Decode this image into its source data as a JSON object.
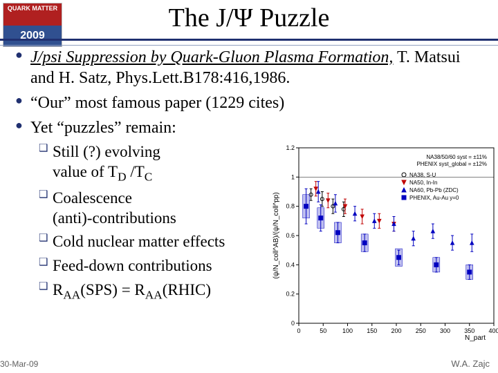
{
  "logo": {
    "top": "QUARK\nMATTER",
    "year": "2009"
  },
  "title": "The J/Ψ Puzzle",
  "bullets": [
    {
      "html": "<span class='ital-u'>J/psi Suppression by Quark-Gluon Plasma Formation,</span> T. Matsui and H. Satz,  Phys.Lett.B178:416,1986."
    },
    {
      "html": "“Our” most famous paper (1229 cites)"
    },
    {
      "html": "Yet “puzzles” remain:"
    }
  ],
  "subs": [
    {
      "html": "Still (?) evolving<br>value of T<span class='sc'>D</span> /T<span class='sc'>C</span>"
    },
    {
      "html": "Coalescence<br>(anti)-contributions"
    },
    {
      "html": "Cold nuclear matter effects"
    },
    {
      "html": "Feed-down contributions"
    },
    {
      "html": "R<span class='sc'>AA</span>(SPS) = R<span class='sc'>AA</span>(RHIC)"
    }
  ],
  "footer": {
    "left": "30-Mar-09",
    "right": "W.A. Zajc"
  },
  "chart": {
    "type": "scatter-errorbar",
    "bg": "#ffffff",
    "axis_color": "#000000",
    "grid": "off",
    "xlim": [
      0,
      400
    ],
    "xticks": [
      0,
      50,
      100,
      150,
      200,
      250,
      300,
      350,
      400
    ],
    "ylim": [
      0,
      1.2
    ],
    "yticks": [
      0,
      0.2,
      0.4,
      0.6,
      0.8,
      1.0,
      1.2
    ],
    "ylabel": "(ψ/N_coll^AB)/(ψ/N_coll^pp)",
    "xlabel": "N_part",
    "ylabel_fontsize": 10,
    "xlabel_fontsize": 10,
    "tick_fontsize": 9,
    "legend": {
      "pos": "top-right",
      "fontsize": 8,
      "items": [
        {
          "label": "NA38, S-U",
          "marker": "circle",
          "color": "#000000"
        },
        {
          "label": "NA50, In-In",
          "marker": "triangle-down",
          "color": "#c00000"
        },
        {
          "label": "NA60, Pb-Pb (ZDC)",
          "marker": "triangle-up",
          "color": "#0000c0"
        },
        {
          "label": "PHENIX, Au-Au y=0",
          "marker": "square",
          "color": "#0000c0"
        }
      ],
      "syst": [
        "NA38/50/60 syst = ±11%",
        "PHENIX syst_global = ±12%"
      ]
    },
    "series": [
      {
        "marker": "circle",
        "color": "#000000",
        "fill": "none",
        "size": 5,
        "points": [
          {
            "x": 25,
            "y": 0.88,
            "ey": 0.04
          },
          {
            "x": 48,
            "y": 0.85,
            "ey": 0.05
          },
          {
            "x": 70,
            "y": 0.8,
            "ey": 0.05
          },
          {
            "x": 92,
            "y": 0.78,
            "ey": 0.05
          }
        ]
      },
      {
        "marker": "triangle-down",
        "color": "#c00000",
        "fill": "#c00000",
        "size": 5,
        "points": [
          {
            "x": 35,
            "y": 0.92,
            "ey": 0.05
          },
          {
            "x": 60,
            "y": 0.84,
            "ey": 0.05
          },
          {
            "x": 95,
            "y": 0.8,
            "ey": 0.05
          },
          {
            "x": 130,
            "y": 0.73,
            "ey": 0.05
          },
          {
            "x": 165,
            "y": 0.7,
            "ey": 0.05
          },
          {
            "x": 195,
            "y": 0.68,
            "ey": 0.05
          }
        ]
      },
      {
        "marker": "triangle-up",
        "color": "#0000c0",
        "fill": "#0000c0",
        "size": 5,
        "points": [
          {
            "x": 40,
            "y": 0.9,
            "ey": 0.07
          },
          {
            "x": 75,
            "y": 0.82,
            "ey": 0.06
          },
          {
            "x": 115,
            "y": 0.75,
            "ey": 0.05
          },
          {
            "x": 155,
            "y": 0.7,
            "ey": 0.05
          },
          {
            "x": 195,
            "y": 0.68,
            "ey": 0.05
          },
          {
            "x": 235,
            "y": 0.58,
            "ey": 0.05
          },
          {
            "x": 275,
            "y": 0.63,
            "ey": 0.05
          },
          {
            "x": 315,
            "y": 0.55,
            "ey": 0.05
          },
          {
            "x": 355,
            "y": 0.55,
            "ey": 0.06
          }
        ]
      },
      {
        "marker": "square",
        "color": "#0000c0",
        "fill": "#0000c0",
        "size": 6,
        "points": [
          {
            "x": 15,
            "y": 0.8,
            "ey": 0.12,
            "box": 0.08
          },
          {
            "x": 45,
            "y": 0.72,
            "ey": 0.09,
            "box": 0.07
          },
          {
            "x": 80,
            "y": 0.62,
            "ey": 0.07,
            "box": 0.07
          },
          {
            "x": 135,
            "y": 0.55,
            "ey": 0.06,
            "box": 0.06
          },
          {
            "x": 205,
            "y": 0.45,
            "ey": 0.05,
            "box": 0.06
          },
          {
            "x": 282,
            "y": 0.4,
            "ey": 0.05,
            "box": 0.05
          },
          {
            "x": 350,
            "y": 0.35,
            "ey": 0.05,
            "box": 0.05
          }
        ]
      }
    ]
  }
}
